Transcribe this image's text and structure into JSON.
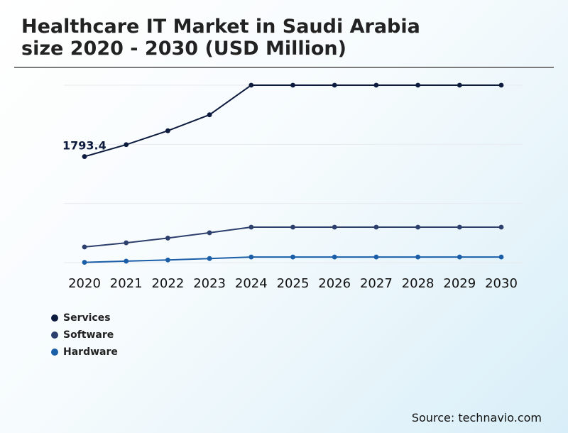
{
  "title_line1": "Healthcare IT Market in Saudi Arabia",
  "title_line2": "size 2020 - 2030 (USD Million)",
  "source": "Source: technavio.com",
  "colors": {
    "services": "#0d1b3e",
    "software": "#2d3f6c",
    "hardware": "#1a5ea8",
    "grid": "#e8eaee"
  },
  "chart_data": {
    "type": "line",
    "x": [
      "2020",
      "2021",
      "2022",
      "2023",
      "2024",
      "2025",
      "2026",
      "2027",
      "2028",
      "2029",
      "2030"
    ],
    "ylim": [
      0,
      3000
    ],
    "grid": true,
    "legend_position": "bottom-left",
    "annotation": {
      "series": "Services",
      "index": 0,
      "text": "1793.4"
    },
    "series": [
      {
        "name": "Services",
        "color": "#0d1b3e",
        "values": [
          1793.4,
          1995,
          2230,
          2500,
          3000,
          3000,
          3000,
          3000,
          3000,
          3000,
          3000
        ]
      },
      {
        "name": "Software",
        "color": "#2d3f6c",
        "values": [
          265,
          335,
          415,
          505,
          600,
          600,
          600,
          600,
          600,
          600,
          600
        ]
      },
      {
        "name": "Hardware",
        "color": "#1a5ea8",
        "values": [
          5,
          25,
          45,
          70,
          95,
          95,
          95,
          95,
          95,
          95,
          95
        ]
      }
    ]
  }
}
